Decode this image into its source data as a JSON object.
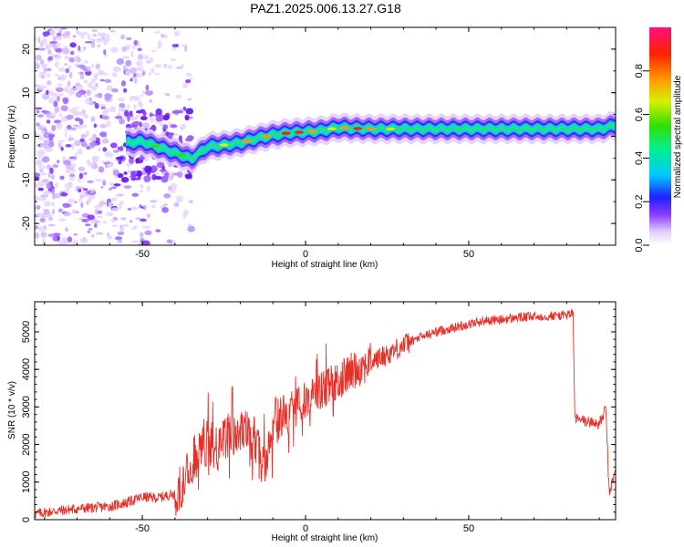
{
  "title": "PAZ1.2025.006.13.27.G18",
  "chart_data": [
    {
      "type": "heatmap",
      "xlabel": "Height of straight line (km)",
      "ylabel": "Frequency (Hz)",
      "xlim": [
        -83,
        95
      ],
      "ylim": [
        -25,
        25
      ],
      "xticks": [
        -50,
        0,
        50
      ],
      "yticks": [
        -20,
        -10,
        0,
        10,
        20
      ],
      "colorbar": {
        "label": "Normalized spectral amplitude",
        "range": [
          0,
          1
        ],
        "ticks": [
          "0.0",
          "0.2",
          "0.4",
          "0.6",
          "0.8"
        ]
      },
      "ridge": {
        "x": [
          -55,
          -50,
          -45,
          -40,
          -35,
          -30,
          -25,
          -20,
          -15,
          -10,
          -5,
          0,
          5,
          10,
          15,
          20,
          30,
          50,
          70,
          90,
          95
        ],
        "y": [
          -1.5,
          -1.2,
          -2.5,
          -3.8,
          -5.2,
          -2.4,
          -2.0,
          -1.5,
          -0.5,
          0.3,
          0.8,
          1.0,
          1.3,
          2.0,
          1.8,
          1.7,
          1.7,
          1.7,
          1.7,
          1.7,
          2.5
        ]
      }
    },
    {
      "type": "line",
      "xlabel": "Height of straight line (km)",
      "ylabel": "SNR (10 * v/v)",
      "xlim": [
        -83,
        95
      ],
      "ylim": [
        0,
        5800
      ],
      "xticks": [
        -50,
        0,
        50
      ],
      "yticks": [
        0,
        1000,
        2000,
        3000,
        4000,
        5000
      ],
      "color": "#e8302a",
      "series": [
        {
          "x": [
            -83,
            -75,
            -68,
            -60,
            -55,
            -50,
            -45,
            -40,
            -36,
            -34,
            -32,
            -30,
            -27,
            -24,
            -20,
            -16,
            -13,
            -10,
            -6,
            -3,
            0,
            3,
            6,
            10,
            15,
            20,
            25,
            30,
            35,
            40,
            45,
            50,
            55,
            60,
            65,
            70,
            75,
            80,
            82,
            82.5,
            84,
            87,
            90,
            91,
            92,
            93,
            94,
            95
          ],
          "y": [
            150,
            250,
            300,
            350,
            450,
            600,
            580,
            700,
            1200,
            1700,
            1900,
            2100,
            1800,
            2200,
            2400,
            2200,
            1400,
            2600,
            2800,
            3000,
            3200,
            3400,
            3500,
            3700,
            4000,
            4200,
            4400,
            4650,
            4850,
            5000,
            5100,
            5200,
            5300,
            5320,
            5380,
            5400,
            5420,
            5450,
            5500,
            2700,
            2650,
            2600,
            2550,
            2700,
            3000,
            700,
            1000,
            1300
          ]
        }
      ]
    }
  ]
}
